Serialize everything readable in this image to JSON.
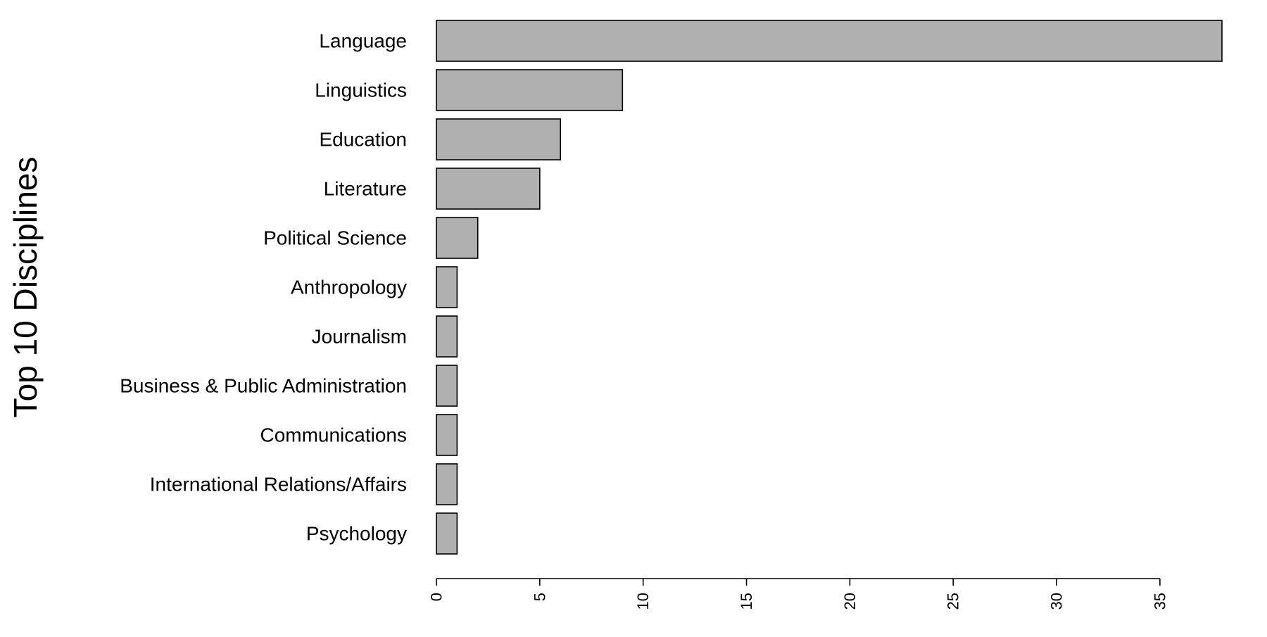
{
  "chart_data": {
    "type": "bar",
    "orientation": "horizontal",
    "title": "",
    "xlabel": "",
    "ylabel": "Top 10 Disciplines",
    "categories": [
      "Language",
      "Linguistics",
      "Education",
      "Literature",
      "Political Science",
      "Anthropology",
      "Journalism",
      "Business & Public Administration",
      "Communications",
      "International Relations/Affairs",
      "Psychology"
    ],
    "values": [
      38,
      9,
      6,
      5,
      2,
      1,
      1,
      1,
      1,
      1,
      1
    ],
    "xlim": [
      0,
      38
    ],
    "xticks": [
      "0",
      "5",
      "10",
      "15",
      "20",
      "25",
      "30",
      "35"
    ],
    "tick_label_rotation": "vertical",
    "grid": false,
    "legend": "none",
    "colors": {
      "bar_fill": "#B0B0B0",
      "bar_stroke": "#000000",
      "axis": "#000000",
      "text": "#000000"
    }
  }
}
